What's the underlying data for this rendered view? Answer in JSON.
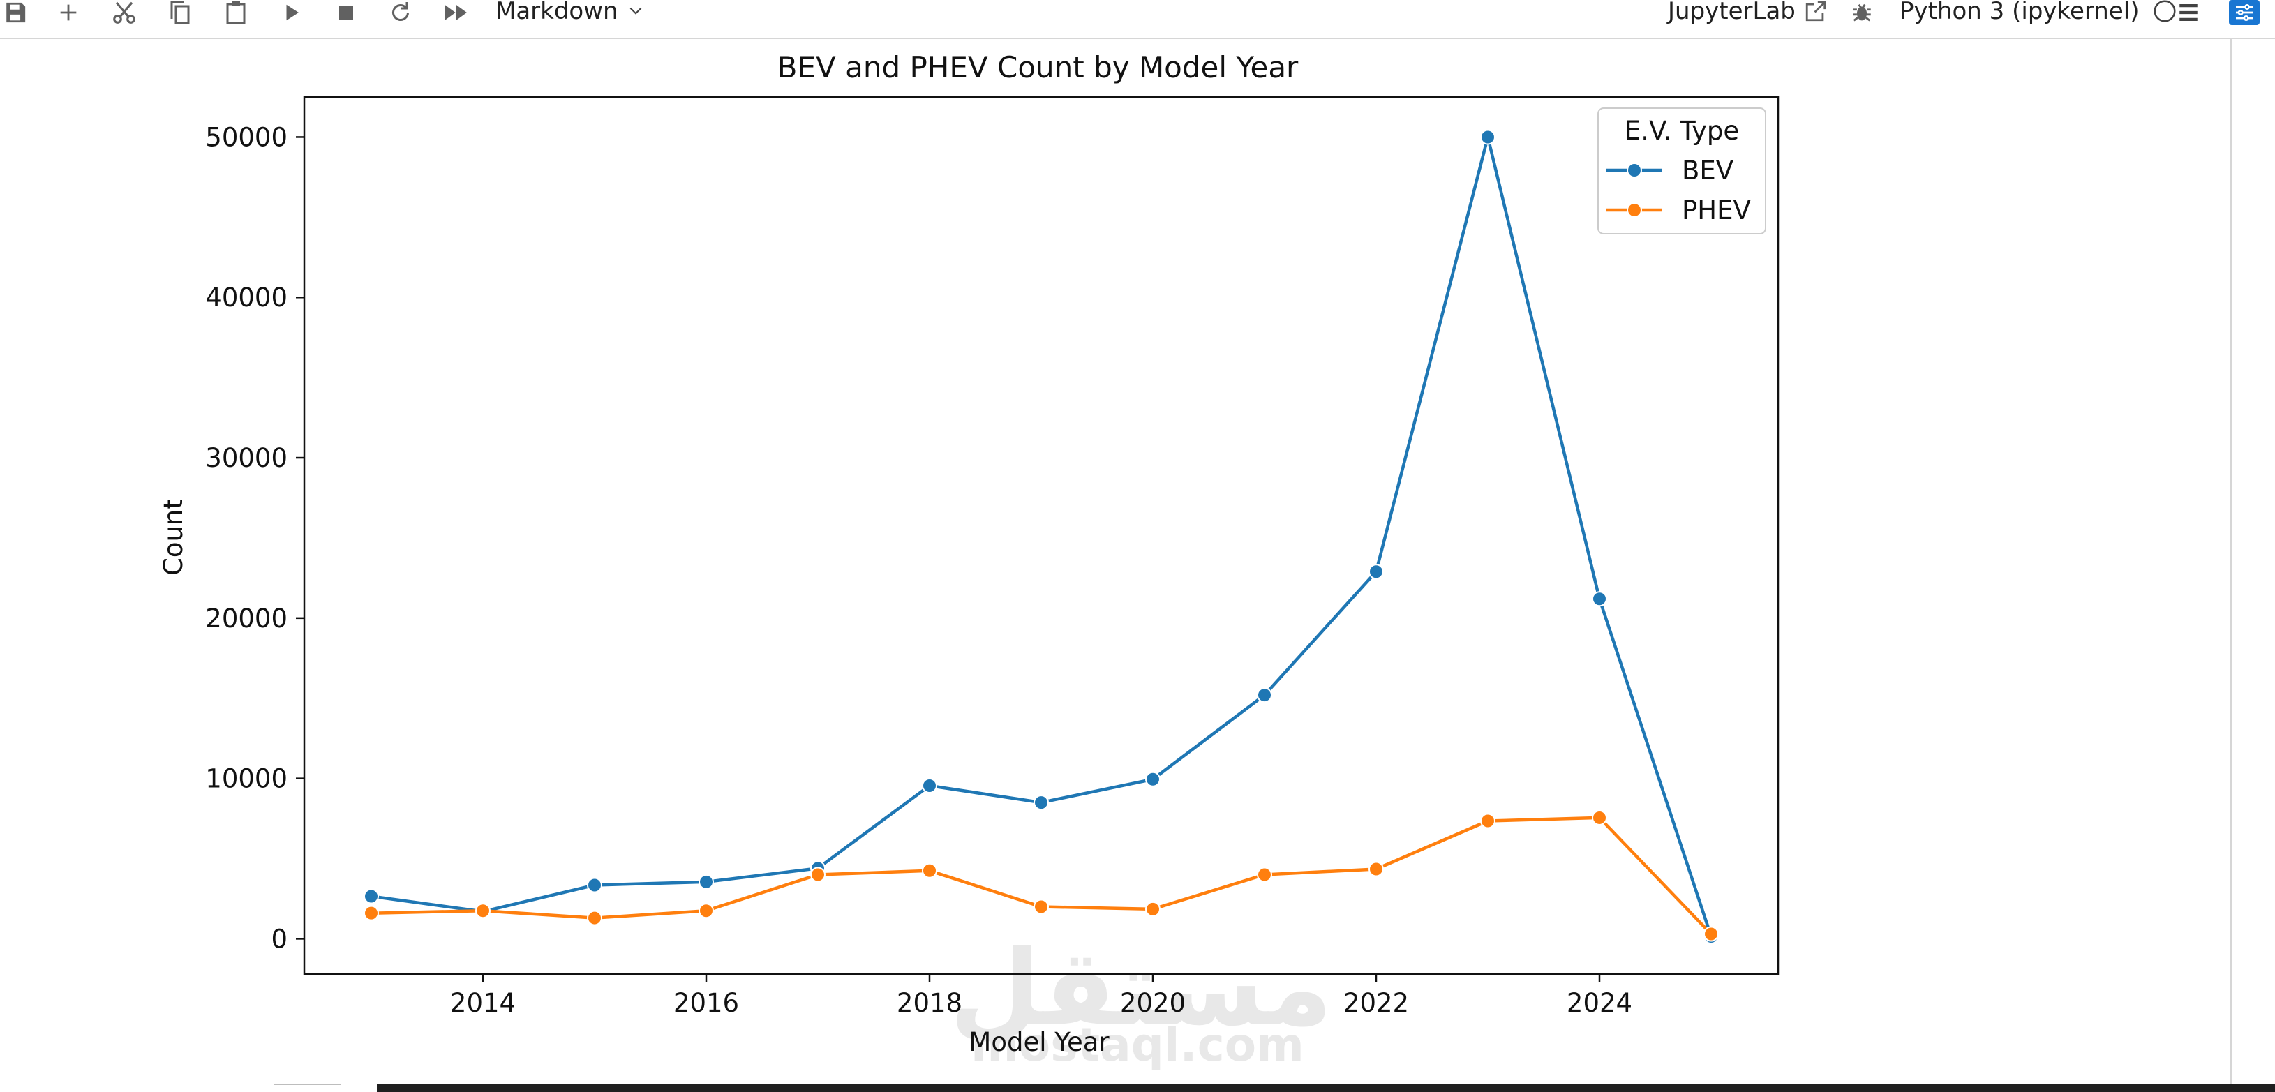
{
  "toolbar": {
    "icons": [
      "save-icon",
      "add-cell-icon",
      "cut-icon",
      "copy-icon",
      "paste-icon",
      "run-icon",
      "stop-icon",
      "restart-icon",
      "fast-forward-icon"
    ],
    "cell_type": "Markdown",
    "jupyterlab_label": "JupyterLab",
    "kernel_name": "Python 3 (ipykernel)"
  },
  "watermark": {
    "arabic": "مستقل",
    "latin": "mostaql.com"
  },
  "chart_data": {
    "type": "line",
    "title": "BEV and PHEV Count by Model Year",
    "xlabel": "Model Year",
    "ylabel": "Count",
    "x": [
      2013,
      2014,
      2015,
      2016,
      2017,
      2018,
      2019,
      2020,
      2021,
      2022,
      2023,
      2024,
      2025
    ],
    "xticks": [
      2014,
      2016,
      2018,
      2020,
      2022,
      2024
    ],
    "yticks": [
      0,
      10000,
      20000,
      30000,
      40000,
      50000
    ],
    "xlim": [
      2012.4,
      2025.6
    ],
    "ylim": [
      -2200,
      52500
    ],
    "legend_title": "E.V. Type",
    "legend_position": "upper right",
    "series": [
      {
        "name": "BEV",
        "color": "#1f77b4",
        "values": [
          2650,
          1700,
          3350,
          3550,
          4400,
          9550,
          8500,
          9950,
          15200,
          22900,
          50000,
          21200,
          150
        ]
      },
      {
        "name": "PHEV",
        "color": "#ff7f0e",
        "values": [
          1600,
          1750,
          1300,
          1750,
          4000,
          4250,
          2000,
          1850,
          4000,
          4350,
          7350,
          7550,
          300
        ]
      }
    ]
  }
}
